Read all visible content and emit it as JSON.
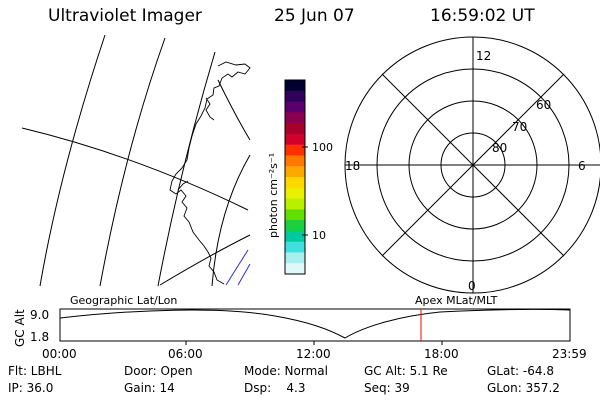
{
  "header": {
    "instrument": "Ultraviolet Imager",
    "date": "25 Jun 07",
    "time": "16:59:02 UT"
  },
  "colorbar": {
    "unit_label": "photon cm⁻²s⁻¹",
    "tick_labels": [
      "100",
      "10"
    ],
    "colors": [
      "#000030",
      "#30005a",
      "#5a006e",
      "#8a0050",
      "#a8002a",
      "#d0002a",
      "#ff3000",
      "#ff7800",
      "#ffa800",
      "#ffd800",
      "#e8f000",
      "#b8f000",
      "#60e000",
      "#18d040",
      "#00c8a0",
      "#40e0e0",
      "#a8f0f0",
      "#e0f8f8"
    ]
  },
  "polar_plot": {
    "lat_labels": [
      "80",
      "70",
      "60"
    ],
    "mlt_labels": {
      "top": "12",
      "bottom": "0",
      "left": "18",
      "right": "6"
    }
  },
  "timeline": {
    "axis_title": "GC Alt",
    "y_ticks": [
      "9.0",
      "1.8"
    ],
    "left_caption": "Geographic Lat/Lon",
    "right_caption": "Apex MLat/MLT",
    "x_ticks": [
      "00:00",
      "06:00",
      "12:00",
      "18:00",
      "23:59"
    ],
    "current_time_color": "#ff0000"
  },
  "status": {
    "col1": [
      "Flt: LBHL",
      "IP: 36.0"
    ],
    "col2": [
      "Door: Open",
      "Gain: 14"
    ],
    "col3": [
      "Mode: Normal",
      "Dsp:    4.3"
    ],
    "col4": [
      "GC Alt: 5.1 Re",
      "Seq: 39"
    ],
    "col5": [
      "GLat: -64.8",
      "GLon: 357.2"
    ]
  }
}
